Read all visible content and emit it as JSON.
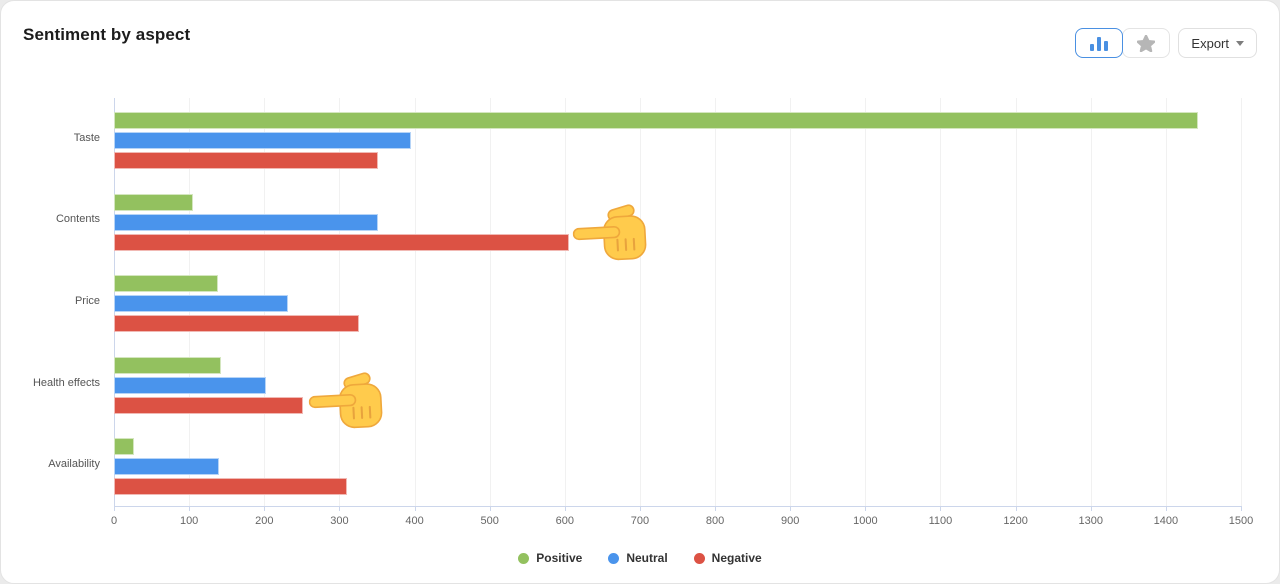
{
  "header": {
    "title": "Sentiment by aspect"
  },
  "toolbar": {
    "view_toggle": {
      "options": [
        {
          "name": "bar-chart-view",
          "icon": "bar-chart-icon",
          "active": true
        },
        {
          "name": "star-view",
          "icon": "star-icon",
          "active": false
        }
      ]
    },
    "export": {
      "label": "Export"
    }
  },
  "chart_data": {
    "type": "bar",
    "orientation": "horizontal",
    "title": "Sentiment by aspect",
    "categories": [
      "Taste",
      "Contents",
      "Price",
      "Health effects",
      "Availability"
    ],
    "series": [
      {
        "name": "Positive",
        "color": "#93c15f",
        "values": [
          1443,
          105,
          138,
          142,
          26
        ]
      },
      {
        "name": "Neutral",
        "color": "#4a94ec",
        "values": [
          395,
          352,
          232,
          202,
          140
        ]
      },
      {
        "name": "Negative",
        "color": "#dc5244",
        "values": [
          352,
          605,
          326,
          252,
          310
        ]
      }
    ],
    "xlim": [
      0,
      1500
    ],
    "x_ticks": [
      0,
      100,
      200,
      300,
      400,
      500,
      600,
      700,
      800,
      900,
      1000,
      1100,
      1200,
      1300,
      1400,
      1500
    ],
    "grid": true,
    "legend_position": "bottom"
  },
  "annotations": [
    {
      "icon": "pointing-hand-left-icon",
      "points_at": "Contents Negative bar"
    },
    {
      "icon": "pointing-hand-left-icon",
      "points_at": "Health effects Negative bar"
    }
  ],
  "colors": {
    "accent": "#4a90e2",
    "axis_line": "#ccd6eb",
    "gridline": "#f1f1f1",
    "axis_label": "#666666",
    "category_label": "#555555",
    "legend_label": "#333333"
  }
}
